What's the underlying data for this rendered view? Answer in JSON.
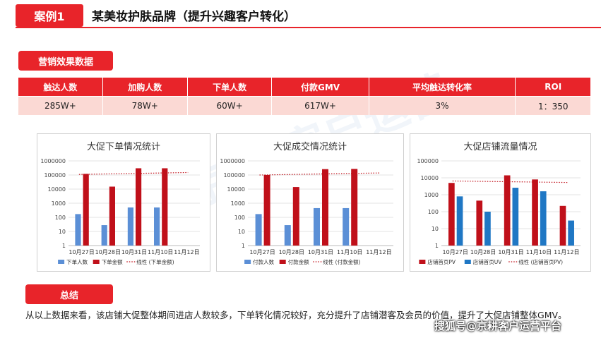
{
  "header": {
    "tab_label": "案例1",
    "title": "某美妆护肤品牌（提升兴趣客户转化）"
  },
  "metrics_section": {
    "label": "营销效果数据",
    "columns": [
      "触达人数",
      "加购人数",
      "下单人数",
      "付款GMV",
      "平均触达转化率",
      "ROI"
    ],
    "values": [
      "285W+",
      "78W+",
      "60W+",
      "617W+",
      "3%",
      "1：350"
    ]
  },
  "background_watermark": "京耕·客户运营",
  "chart_data": [
    {
      "type": "bar",
      "title": "大促下单情况统计",
      "categories": [
        "10月27日",
        "10月28日",
        "10月31日",
        "11月10日",
        "11月12日"
      ],
      "yscale": "log",
      "ylim": [
        1,
        1000000
      ],
      "yticks": [
        "1",
        "10",
        "100",
        "1000",
        "10000",
        "100000",
        "1000000"
      ],
      "series": [
        {
          "name": "下单人数",
          "color": "#5b8fd6",
          "values": [
            170,
            28,
            500,
            500,
            null
          ]
        },
        {
          "name": "下单金额",
          "color": "#c0101a",
          "values": [
            120000,
            15000,
            300000,
            300000,
            null
          ]
        }
      ],
      "trendline": {
        "name": "线性 (下单金额)",
        "color": "#c0101a",
        "style": "dotted",
        "values": [
          110000,
          120000,
          130000,
          140000,
          150000
        ]
      },
      "legend": "bottom"
    },
    {
      "type": "bar",
      "title": "大促成交情况统计",
      "categories": [
        "10月27日",
        "10月28日",
        "10月31日",
        "11月10日",
        "11月12日"
      ],
      "yscale": "log",
      "ylim": [
        1,
        1000000
      ],
      "yticks": [
        "1",
        "10",
        "100",
        "1000",
        "10000",
        "100000",
        "1000000"
      ],
      "series": [
        {
          "name": "付款人数",
          "color": "#5b8fd6",
          "values": [
            170,
            28,
            450,
            450,
            null
          ]
        },
        {
          "name": "付款金额",
          "color": "#c0101a",
          "values": [
            100000,
            14000,
            260000,
            270000,
            null
          ]
        }
      ],
      "trendline": {
        "name": "线性 (付款金额)",
        "color": "#c0101a",
        "style": "dotted",
        "values": [
          100000,
          110000,
          120000,
          130000,
          140000
        ]
      },
      "legend": "bottom"
    },
    {
      "type": "bar",
      "title": "大促店铺流量情况",
      "categories": [
        "10月27日",
        "10月28日",
        "10月31日",
        "11月10日",
        "11月12日"
      ],
      "yscale": "log",
      "ylim": [
        1,
        100000
      ],
      "yticks": [
        "1",
        "10",
        "100",
        "1000",
        "10000",
        "100000"
      ],
      "series": [
        {
          "name": "店铺首页PV",
          "color": "#c0101a",
          "values": [
            5000,
            450,
            14000,
            8000,
            220
          ]
        },
        {
          "name": "店铺首页UV",
          "color": "#1f77c4",
          "values": [
            800,
            100,
            2600,
            1600,
            30
          ]
        }
      ],
      "trendline": {
        "name": "线性 (店铺首页PV)",
        "color": "#c0101a",
        "style": "dotted",
        "values": [
          6500,
          6200,
          5900,
          5600,
          5300
        ]
      },
      "legend": "bottom"
    }
  ],
  "summary_section": {
    "label": "总结",
    "text": "从以上数据来看，该店铺大促整体期间进店人数较多，下单转化情况较好，充分提升了店铺潜客及会员的价值，提升了大促店铺整体GMV。"
  },
  "source_watermark": "搜狐号@京耕客户运营平台"
}
